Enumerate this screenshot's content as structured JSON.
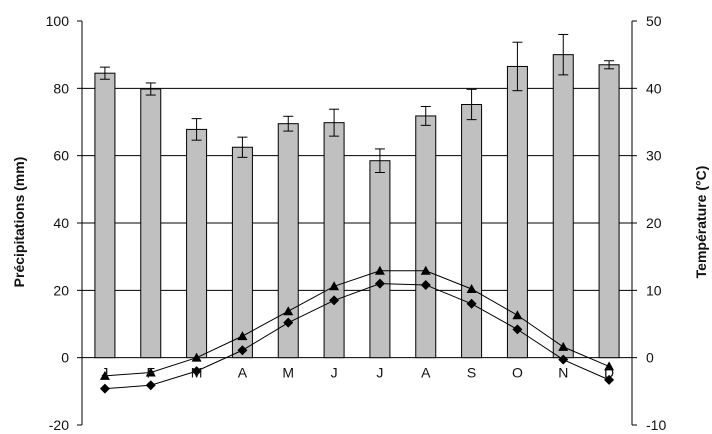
{
  "chart_data": {
    "type": "bar+line",
    "categories": [
      "J",
      "F",
      "M",
      "A",
      "M",
      "J",
      "J",
      "A",
      "S",
      "O",
      "N",
      "D"
    ],
    "y_left": {
      "label": "Précipitations (mm)",
      "range": [
        -20,
        100
      ],
      "ticks": [
        -20,
        0,
        20,
        40,
        60,
        80,
        100
      ]
    },
    "y_right": {
      "label": "Température (°C)",
      "range": [
        -10,
        50
      ],
      "ticks": [
        -10,
        0,
        10,
        20,
        30,
        40,
        50
      ]
    },
    "gridlines": [
      20,
      40,
      60,
      80
    ],
    "precipitation": {
      "values": [
        84.5,
        79.8,
        67.8,
        62.5,
        69.5,
        69.8,
        58.5,
        71.8,
        75.2,
        86.5,
        90.0,
        87.0
      ],
      "error": [
        1.8,
        1.8,
        3.2,
        3.0,
        2.2,
        4.0,
        3.5,
        2.8,
        4.5,
        7.2,
        6.0,
        1.2
      ],
      "color": "#c0c0c0"
    },
    "temperature_series": [
      {
        "marker": "triangle",
        "values": [
          -2.7,
          -2.2,
          0,
          3.2,
          6.9,
          10.6,
          12.9,
          12.9,
          10.2,
          6.3,
          1.6,
          -1.3
        ]
      },
      {
        "marker": "diamond",
        "values": [
          -4.6,
          -4.1,
          -2.0,
          1.1,
          5.2,
          8.5,
          11.0,
          10.8,
          8.0,
          4.2,
          -0.3,
          -3.3
        ]
      }
    ],
    "line_color": "#000000"
  }
}
